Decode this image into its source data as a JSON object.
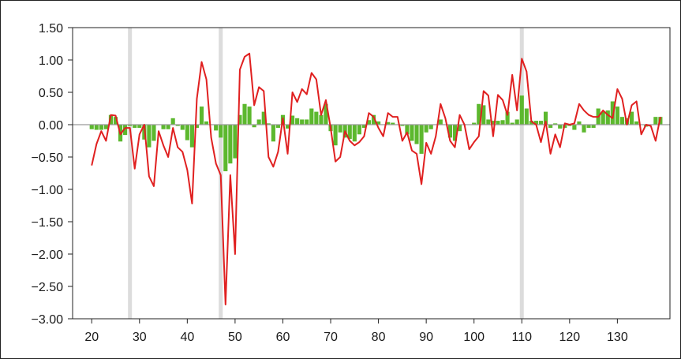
{
  "chart_data": {
    "type": "bar+line",
    "title": "",
    "xlabel": "",
    "ylabel": "",
    "xlim": [
      16,
      141
    ],
    "ylim": [
      -3.0,
      1.5
    ],
    "x_ticks": [
      20,
      30,
      40,
      50,
      60,
      70,
      80,
      90,
      100,
      110,
      120,
      130
    ],
    "y_ticks": [
      -3.0,
      -2.5,
      -2.0,
      -1.5,
      -1.0,
      -0.5,
      0.0,
      0.5,
      1.0,
      1.5
    ],
    "y_tick_labels": [
      "−3.00",
      "−2.50",
      "−2.00",
      "−1.50",
      "−1.00",
      "−0.50",
      "0.00",
      "0.50",
      "1.00",
      "1.50"
    ],
    "x_tick_labels": [
      "20",
      "30",
      "40",
      "50",
      "60",
      "70",
      "80",
      "90",
      "100",
      "110",
      "120",
      "130"
    ],
    "grid": false,
    "reference_lines": [
      28,
      47,
      110
    ],
    "colors": {
      "bars": "#5cb82e",
      "line": "#e02020",
      "zero_line": "#9a9a9a",
      "reference": "#dcdcdc",
      "axis": "#222222"
    },
    "x": [
      20,
      21,
      22,
      23,
      24,
      25,
      26,
      27,
      28,
      29,
      30,
      31,
      32,
      33,
      34,
      35,
      36,
      37,
      38,
      39,
      40,
      41,
      42,
      43,
      44,
      45,
      46,
      47,
      48,
      49,
      50,
      51,
      52,
      53,
      54,
      55,
      56,
      57,
      58,
      59,
      60,
      61,
      62,
      63,
      64,
      65,
      66,
      67,
      68,
      69,
      70,
      71,
      72,
      73,
      74,
      75,
      76,
      77,
      78,
      79,
      80,
      81,
      82,
      83,
      84,
      85,
      86,
      87,
      88,
      89,
      90,
      91,
      92,
      93,
      94,
      95,
      96,
      97,
      98,
      99,
      100,
      101,
      102,
      103,
      104,
      105,
      106,
      107,
      108,
      109,
      110,
      111,
      112,
      113,
      114,
      115,
      116,
      117,
      118,
      119,
      120,
      121,
      122,
      123,
      124,
      125,
      126,
      127,
      128,
      129,
      130,
      131,
      132,
      133,
      134,
      135,
      136,
      137,
      138,
      139
    ],
    "series": [
      {
        "kind": "bar",
        "values": [
          -0.07,
          -0.08,
          -0.08,
          -0.07,
          0.15,
          0.12,
          -0.26,
          -0.16,
          -0.02,
          -0.05,
          -0.05,
          -0.23,
          -0.35,
          -0.25,
          0.0,
          -0.07,
          -0.07,
          0.1,
          -0.02,
          -0.08,
          -0.24,
          -0.35,
          -0.05,
          0.28,
          0.05,
          0.0,
          -0.09,
          -0.2,
          -0.72,
          -0.6,
          -0.52,
          0.15,
          0.32,
          0.28,
          -0.04,
          0.08,
          0.2,
          0.02,
          -0.26,
          -0.05,
          0.15,
          -0.06,
          0.14,
          0.1,
          0.08,
          0.08,
          0.25,
          0.2,
          0.15,
          0.32,
          -0.1,
          -0.32,
          -0.12,
          -0.2,
          -0.22,
          -0.26,
          -0.15,
          -0.05,
          0.07,
          0.15,
          0.05,
          0.0,
          0.04,
          0.03,
          0.0,
          -0.02,
          -0.15,
          -0.25,
          -0.3,
          -0.45,
          -0.12,
          -0.07,
          0.0,
          0.08,
          0.0,
          -0.2,
          -0.25,
          -0.1,
          0.0,
          0.0,
          0.03,
          0.32,
          0.3,
          0.08,
          0.06,
          0.06,
          0.07,
          0.2,
          0.03,
          0.08,
          0.45,
          0.25,
          0.06,
          0.06,
          0.06,
          0.2,
          -0.05,
          0.02,
          -0.06,
          -0.05,
          -0.02,
          -0.08,
          0.05,
          -0.12,
          -0.05,
          -0.05,
          0.25,
          0.2,
          0.22,
          0.36,
          0.28,
          0.12,
          0.1,
          0.2,
          0.05,
          0.0,
          -0.03,
          0.0,
          0.12,
          0.12
        ]
      },
      {
        "kind": "line",
        "values": [
          -0.63,
          -0.3,
          -0.1,
          -0.25,
          0.15,
          0.14,
          -0.15,
          -0.05,
          -0.05,
          -0.68,
          -0.15,
          0.0,
          -0.8,
          -0.95,
          -0.1,
          -0.32,
          -0.5,
          -0.05,
          -0.35,
          -0.42,
          -0.7,
          -1.22,
          0.4,
          0.97,
          0.7,
          -0.2,
          -0.6,
          -0.78,
          -2.78,
          -0.78,
          -2.0,
          0.85,
          1.05,
          1.1,
          0.3,
          0.58,
          0.52,
          -0.5,
          -0.65,
          -0.42,
          0.1,
          -0.45,
          0.5,
          0.35,
          0.55,
          0.47,
          0.8,
          0.7,
          0.15,
          0.38,
          -0.05,
          -0.57,
          -0.5,
          -0.1,
          -0.25,
          -0.32,
          -0.27,
          -0.18,
          0.18,
          0.12,
          -0.05,
          -0.18,
          0.18,
          0.12,
          0.12,
          -0.25,
          -0.12,
          -0.4,
          -0.45,
          -0.92,
          -0.28,
          -0.45,
          -0.18,
          0.32,
          0.1,
          -0.25,
          -0.35,
          0.15,
          0.0,
          -0.38,
          -0.27,
          -0.18,
          0.52,
          0.45,
          -0.18,
          0.46,
          0.38,
          0.15,
          0.77,
          0.22,
          1.02,
          0.82,
          0.05,
          0.0,
          -0.27,
          0.05,
          -0.45,
          -0.15,
          -0.35,
          0.02,
          0.0,
          0.02,
          0.32,
          0.22,
          0.15,
          0.12,
          0.12,
          0.22,
          0.15,
          0.1,
          0.55,
          0.4,
          0.0,
          0.3,
          0.36,
          -0.15,
          0.0,
          -0.02,
          -0.25,
          0.12
        ]
      }
    ]
  }
}
